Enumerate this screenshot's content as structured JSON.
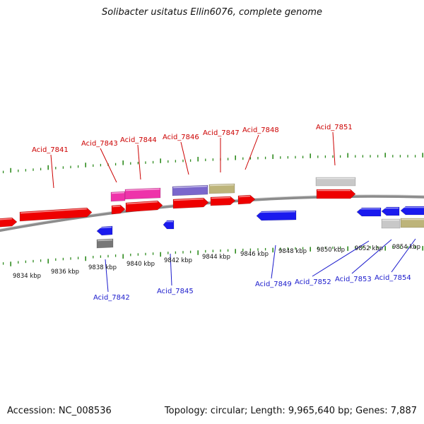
{
  "title": "Solibacter usitatus Ellin6076, complete genome",
  "footer": {
    "accession": "Accession: NC_008536",
    "topology": "Topology: circular; Length: 9,965,640 bp; Genes: 7,887"
  },
  "colors": {
    "backbone": "#8c8c8c",
    "tick": "#2e8b1e",
    "forward_label": "#cc0000",
    "reverse_label": "#1a1acc",
    "red": "#ee0000",
    "magenta": "#ee33aa",
    "purple": "#7a66cc",
    "khaki": "#bdb47a",
    "gray": "#c8c8c8",
    "darkgray": "#777777",
    "blue": "#1a1aee"
  },
  "tick_labels": [
    "9834 kbp",
    "9836 kbp",
    "9838 kbp",
    "9840 kbp",
    "9842 kbp",
    "9844 kbp",
    "9846 kbp",
    "9848 kbp",
    "9850 kbp",
    "9852 kbp",
    "9854 kbp"
  ],
  "forward_labels": [
    "Acid_7841",
    "Acid_7843",
    "Acid_7844",
    "Acid_7846",
    "Acid_7847",
    "Acid_7848",
    "Acid_7851"
  ],
  "reverse_labels": [
    "Acid_7842",
    "Acid_7845",
    "Acid_7849",
    "Acid_7852",
    "Acid_7853",
    "Acid_7854"
  ]
}
